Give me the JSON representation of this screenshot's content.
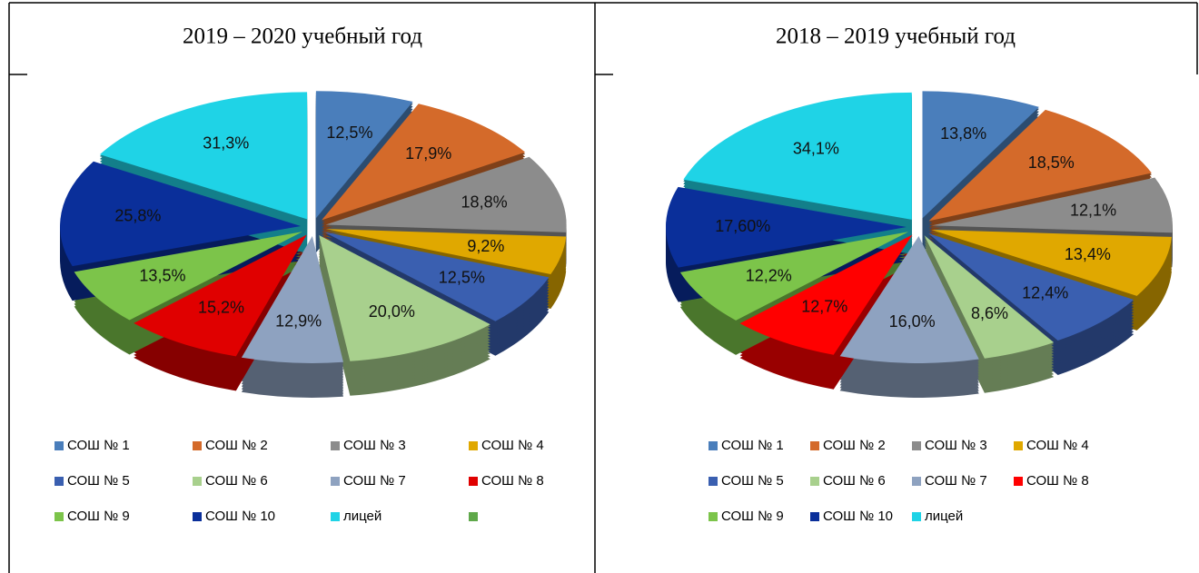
{
  "chart_data": [
    {
      "type": "pie",
      "title": "2019 – 2020 учебный год",
      "categories": [
        "СОШ № 1",
        "СОШ № 2",
        "СОШ № 3",
        "СОШ № 4",
        "СОШ № 5",
        "СОШ № 6",
        "СОШ № 7",
        "СОШ № 8",
        "СОШ № 9",
        "СОШ № 10",
        "лицей",
        null
      ],
      "values": [
        12.5,
        17.9,
        18.8,
        9.2,
        12.5,
        20.0,
        12.9,
        15.2,
        13.5,
        25.8,
        31.3,
        null
      ],
      "value_labels": [
        "12,5%",
        "17,9%",
        "18,8%",
        "9,2%",
        "12,5%",
        "20,0%",
        "12,9%",
        "15,2%",
        "13,5%",
        "25,8%",
        "31,3%",
        null
      ],
      "colors": [
        "#4a7ebb",
        "#d46a2a",
        "#8c8c8c",
        "#e0a800",
        "#3a5fb0",
        "#a8d08d",
        "#8ea2c0",
        "#e00000",
        "#7cc44a",
        "#0a2f9a",
        "#1fd3e6",
        "#5fa84a"
      ]
    },
    {
      "type": "pie",
      "title": "2018 – 2019 учебный год",
      "categories": [
        "СОШ № 1",
        "СОШ № 2",
        "СОШ № 3",
        "СОШ № 4",
        "СОШ № 5",
        "СОШ № 6",
        "СОШ № 7",
        "СОШ № 8",
        "СОШ № 9",
        "СОШ № 10",
        "лицей"
      ],
      "values": [
        13.8,
        18.5,
        12.1,
        13.4,
        12.4,
        8.6,
        16.0,
        12.7,
        12.2,
        17.6,
        34.1
      ],
      "value_labels": [
        "13,8%",
        "18,5%",
        "12,1%",
        "13,4%",
        "12,4%",
        "8,6%",
        "16,0%",
        "12,7%",
        "12,2%",
        "17,60%",
        "34,1%"
      ],
      "colors": [
        "#4a7ebb",
        "#d46a2a",
        "#8c8c8c",
        "#e0a800",
        "#3a5fb0",
        "#a8d08d",
        "#8ea2c0",
        "#ff0000",
        "#7cc44a",
        "#0a2f9a",
        "#1fd3e6"
      ]
    }
  ]
}
